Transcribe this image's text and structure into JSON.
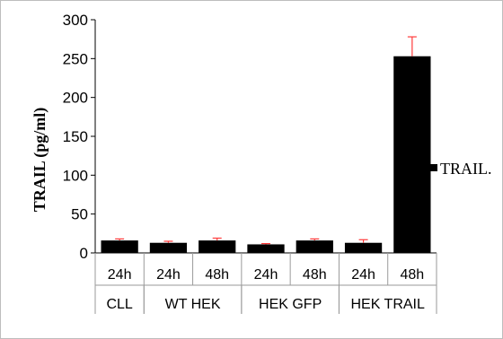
{
  "chart_data": {
    "type": "bar",
    "ylabel": "TRAIL  (pg/ml)",
    "ylim": [
      0,
      300
    ],
    "yticks": [
      0,
      50,
      100,
      150,
      200,
      250,
      300
    ],
    "categories": [
      "24h",
      "24h",
      "48h",
      "24h",
      "48h",
      "24h",
      "48h"
    ],
    "groups": [
      {
        "label": "CLL",
        "span": 1
      },
      {
        "label": "WT HEK",
        "span": 2
      },
      {
        "label": "HEK GFP",
        "span": 2
      },
      {
        "label": "HEK TRAIL",
        "span": 2
      }
    ],
    "series": [
      {
        "name": "TRAIL.",
        "values": [
          16,
          13,
          16,
          11,
          16,
          13,
          253
        ],
        "errors": [
          2,
          2,
          3,
          1,
          2,
          4,
          25
        ],
        "color": "#000000",
        "error_color": "#ff3b3b"
      }
    ],
    "legend_position": "right",
    "grid": false
  }
}
